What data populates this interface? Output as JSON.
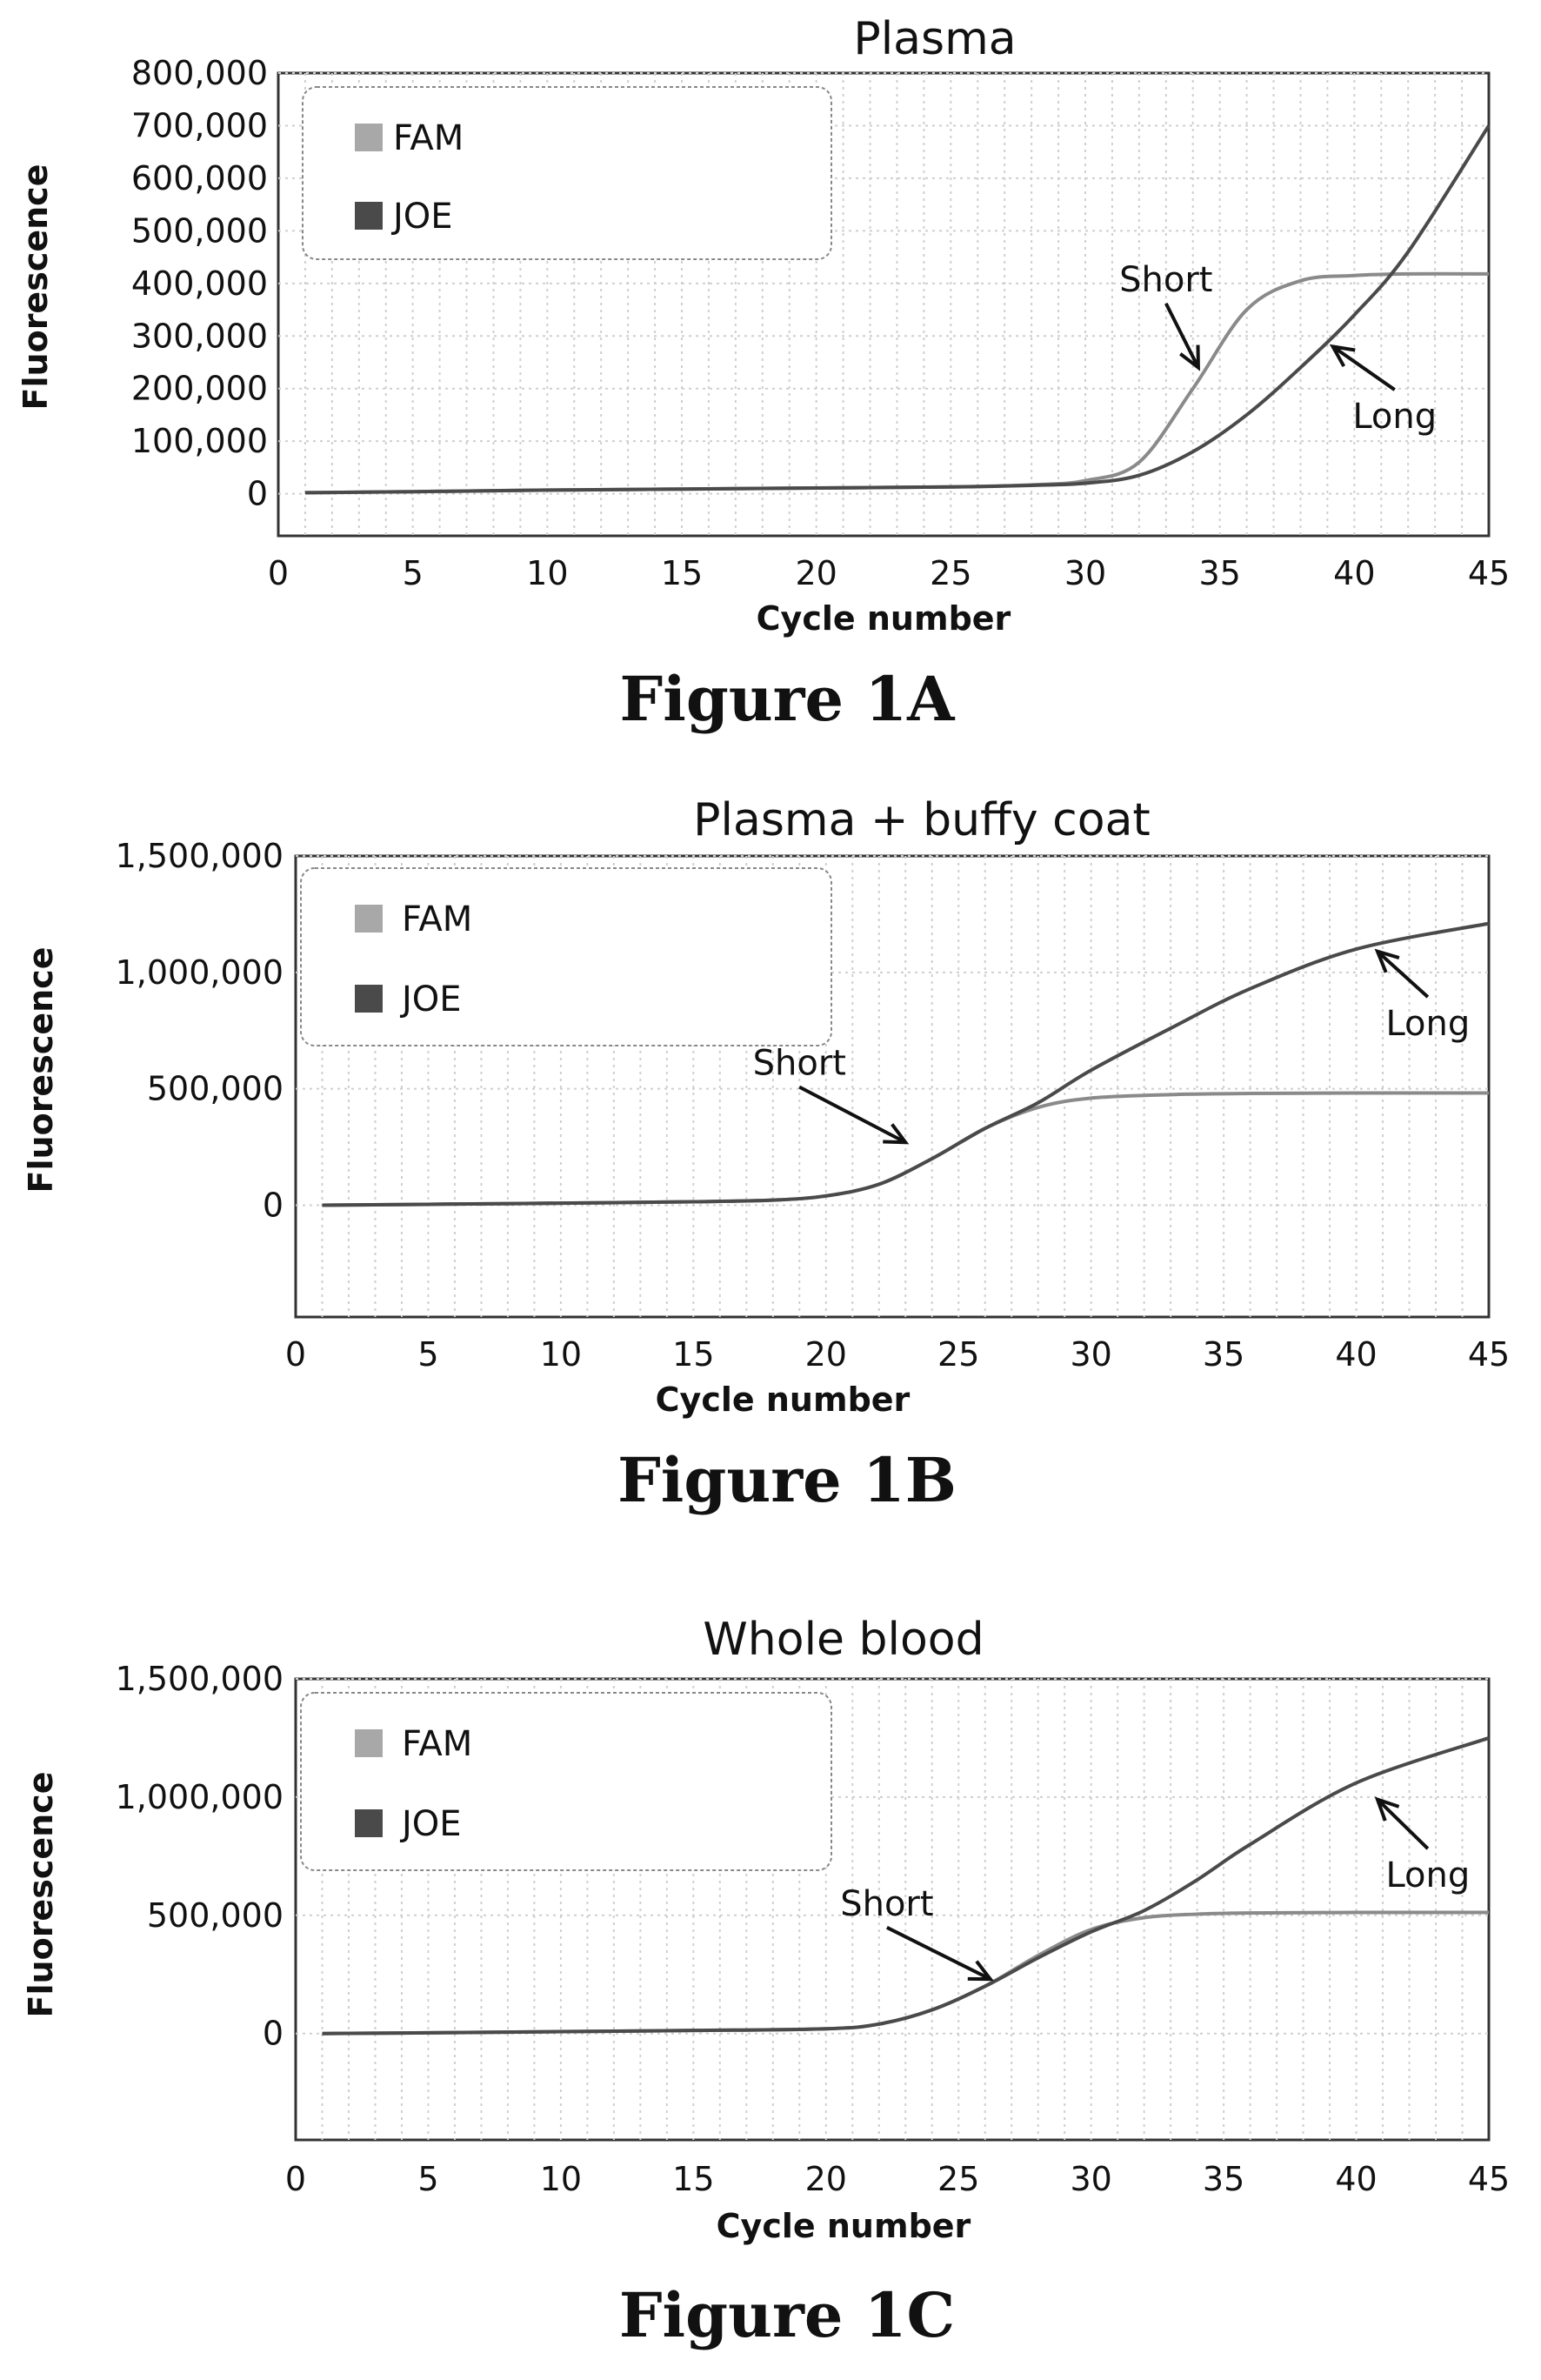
{
  "charts": [
    {
      "type": "line",
      "title": "Plasma",
      "xlabel": "Cycle number",
      "ylabel": "Fluorescence",
      "xlim": [
        0,
        45
      ],
      "ylim": [
        -80000,
        800000
      ],
      "xticks": [
        0,
        5,
        10,
        15,
        20,
        25,
        30,
        35,
        40,
        45
      ],
      "yticks": [
        0,
        100000,
        200000,
        300000,
        400000,
        500000,
        600000,
        700000,
        800000
      ],
      "ytick_labels": [
        "0",
        "100,000",
        "200,000",
        "300,000",
        "400,000",
        "500,000",
        "600,000",
        "700,000",
        "800,000"
      ],
      "grid": true,
      "legend": {
        "placement": "top-left",
        "entries": [
          "FAM",
          "JOE"
        ]
      },
      "series": [
        {
          "name": "FAM",
          "color": "#8a8a8a",
          "x": [
            1,
            5,
            10,
            15,
            20,
            25,
            28,
            30,
            32,
            34,
            36,
            38,
            40,
            42,
            45
          ],
          "y": [
            2000,
            4000,
            7000,
            9000,
            11000,
            13000,
            17000,
            25000,
            60000,
            200000,
            350000,
            405000,
            415000,
            418000,
            418000
          ]
        },
        {
          "name": "JOE",
          "color": "#4a4a4a",
          "x": [
            1,
            5,
            10,
            15,
            20,
            25,
            28,
            30,
            32,
            34,
            36,
            38,
            40,
            42,
            45
          ],
          "y": [
            2000,
            4000,
            7000,
            9000,
            11000,
            13000,
            16000,
            20000,
            35000,
            80000,
            150000,
            240000,
            340000,
            460000,
            700000
          ]
        }
      ],
      "annotations": [
        {
          "text": "Short",
          "x": 33.0,
          "y": 385000,
          "arrow_to": [
            34.2,
            240000
          ]
        },
        {
          "text": "Long",
          "x": 41.5,
          "y": 125000,
          "arrow_to": [
            39.2,
            280000
          ]
        }
      ],
      "caption": "Figure 1A"
    },
    {
      "type": "line",
      "title": "Plasma + buffy coat",
      "xlabel": "Cycle number",
      "ylabel": "Fluorescence",
      "xlim": [
        0,
        45
      ],
      "ylim": [
        -480000,
        1500000
      ],
      "xticks": [
        0,
        5,
        10,
        15,
        20,
        25,
        30,
        35,
        40,
        45
      ],
      "yticks": [
        0,
        500000,
        1000000,
        1500000
      ],
      "ytick_labels": [
        "0",
        "500,000",
        "1,000,000",
        "1,500,000"
      ],
      "grid": true,
      "legend": {
        "placement": "top-left",
        "entries": [
          "FAM",
          "JOE"
        ]
      },
      "series": [
        {
          "name": "FAM",
          "color": "#8a8a8a",
          "x": [
            1,
            5,
            10,
            15,
            18,
            20,
            22,
            24,
            26,
            28,
            30,
            33,
            36,
            40,
            45
          ],
          "y": [
            0,
            4000,
            9000,
            15000,
            22000,
            40000,
            90000,
            200000,
            330000,
            420000,
            460000,
            475000,
            480000,
            482000,
            482000
          ]
        },
        {
          "name": "JOE",
          "color": "#4a4a4a",
          "x": [
            1,
            5,
            10,
            15,
            18,
            20,
            22,
            24,
            26,
            28,
            30,
            33,
            36,
            40,
            45
          ],
          "y": [
            0,
            4000,
            9000,
            15000,
            22000,
            40000,
            90000,
            200000,
            330000,
            440000,
            580000,
            760000,
            930000,
            1100000,
            1210000
          ]
        }
      ],
      "annotations": [
        {
          "text": "Short",
          "x": 19.0,
          "y": 560000,
          "arrow_to": [
            23.0,
            270000
          ]
        },
        {
          "text": "Long",
          "x": 42.7,
          "y": 730000,
          "arrow_to": [
            40.8,
            1090000
          ]
        }
      ],
      "caption": "Figure 1B"
    },
    {
      "type": "line",
      "title": "Whole blood",
      "xlabel": "Cycle number",
      "ylabel": "Fluorescence",
      "xlim": [
        0,
        45
      ],
      "ylim": [
        -450000,
        1500000
      ],
      "xticks": [
        0,
        5,
        10,
        15,
        20,
        25,
        30,
        35,
        40,
        45
      ],
      "yticks": [
        0,
        500000,
        1000000,
        1500000
      ],
      "ytick_labels": [
        "0",
        "500,000",
        "1,000,000",
        "1,500,000"
      ],
      "grid": true,
      "legend": {
        "placement": "top-left",
        "entries": [
          "FAM",
          "JOE"
        ]
      },
      "series": [
        {
          "name": "FAM",
          "color": "#8a8a8a",
          "x": [
            1,
            5,
            10,
            15,
            20,
            22,
            24,
            26,
            28,
            30,
            32,
            34,
            36,
            40,
            45
          ],
          "y": [
            0,
            3000,
            8000,
            13000,
            20000,
            40000,
            100000,
            200000,
            330000,
            440000,
            490000,
            505000,
            510000,
            512000,
            512000
          ]
        },
        {
          "name": "JOE",
          "color": "#4a4a4a",
          "x": [
            1,
            5,
            10,
            15,
            20,
            22,
            24,
            26,
            28,
            30,
            32,
            34,
            36,
            40,
            45
          ],
          "y": [
            0,
            3000,
            8000,
            13000,
            20000,
            40000,
            100000,
            200000,
            320000,
            430000,
            520000,
            650000,
            800000,
            1060000,
            1250000
          ]
        }
      ],
      "annotations": [
        {
          "text": "Short",
          "x": 22.3,
          "y": 500000,
          "arrow_to": [
            26.2,
            230000
          ]
        },
        {
          "text": "Long",
          "x": 42.7,
          "y": 620000,
          "arrow_to": [
            40.8,
            990000
          ]
        }
      ],
      "caption": "Figure 1C"
    }
  ]
}
